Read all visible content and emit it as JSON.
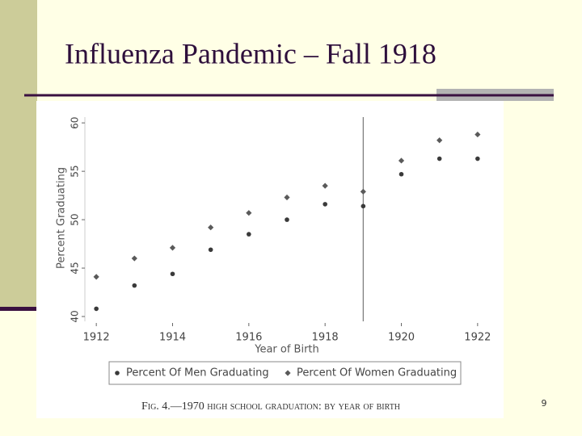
{
  "slide": {
    "title": "Influenza Pandemic – Fall 1918",
    "page_number": 9
  },
  "chart_data": {
    "type": "scatter",
    "x_label": "Year of Birth",
    "y_label": "Percent Graduating",
    "caption": "Fig. 4.—1970 high school graduation: by year of birth",
    "x": [
      1912,
      1913,
      1914,
      1915,
      1916,
      1917,
      1918,
      1919,
      1920,
      1921,
      1922
    ],
    "series": [
      {
        "name": "Percent Of Men Graduating",
        "color": "#3a3a3a",
        "marker": "circle",
        "values": [
          40.8,
          43.2,
          44.4,
          46.9,
          48.5,
          50.0,
          51.6,
          51.4,
          54.7,
          56.3,
          56.3
        ]
      },
      {
        "name": "Percent Of Women Graduating",
        "color": "#5a5a5a",
        "marker": "diamond",
        "values": [
          44.1,
          46.0,
          47.1,
          49.2,
          50.7,
          52.3,
          53.5,
          52.9,
          56.1,
          58.2,
          58.8
        ]
      }
    ],
    "xlim": [
      1911.7,
      1922.3
    ],
    "ylim": [
      39.5,
      60.6
    ],
    "xticks": [
      1912,
      1914,
      1916,
      1918,
      1920,
      1922
    ],
    "yticks": [
      40,
      45,
      50,
      55,
      60
    ],
    "vline": 1919,
    "legend": "bottom"
  }
}
